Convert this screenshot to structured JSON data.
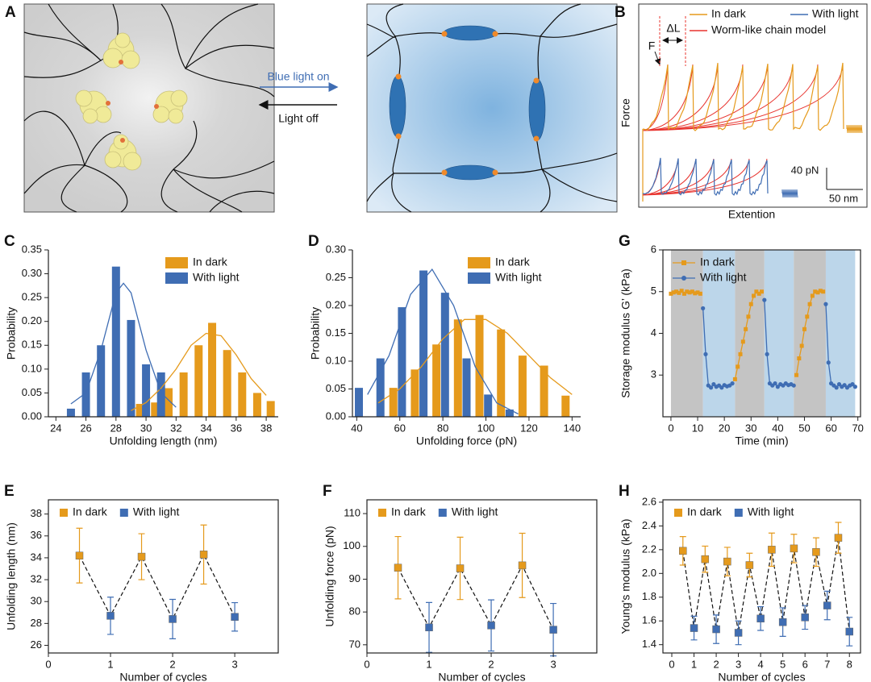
{
  "illustration": {
    "panel": "A",
    "light_on": "Blue light on",
    "light_off": "Light off"
  },
  "force_extension": {
    "panel": "B",
    "legend": [
      "In dark",
      "With light",
      "Worm-like chain model"
    ],
    "colors": [
      "#e59a1c",
      "#3f6db3",
      "#e8342f"
    ],
    "force_label": "F",
    "delta_label": "ΔL",
    "ylabel": "Force",
    "xlabel": "Extention",
    "force_scale": "40 pN",
    "length_scale": "50 nm"
  },
  "chart_data": [
    {
      "panel": "C",
      "type": "bar",
      "xlabel": "Unfolding length (nm)",
      "ylabel": "Probability",
      "frame": false,
      "legend": "top-right",
      "legend_orientation": "vertical",
      "xlim": [
        23.5,
        38.8
      ],
      "ylim": [
        0,
        0.35
      ],
      "xticks": [
        24,
        26,
        28,
        30,
        32,
        34,
        36,
        38
      ],
      "yticks": [
        {
          "value": 0,
          "label": "0.00"
        },
        0.05,
        {
          "value": 0.1,
          "label": "0.10"
        },
        0.15,
        {
          "value": 0.2,
          "label": "0.20"
        },
        0.25,
        {
          "value": 0.3,
          "label": "0.30"
        },
        0.35
      ],
      "series": [
        {
          "name": "In dark",
          "color": "#e59a1c",
          "type": "bar",
          "x": [
            29.6,
            30.6,
            31.5,
            32.5,
            33.5,
            34.4,
            35.4,
            36.4,
            37.4,
            38.3
          ],
          "values": [
            0.027,
            0.03,
            0.06,
            0.093,
            0.15,
            0.197,
            0.14,
            0.093,
            0.05,
            0.033
          ]
        },
        {
          "name": "With light",
          "color": "#3f6db3",
          "type": "bar",
          "x": [
            25,
            26,
            27,
            28,
            29,
            30,
            31
          ],
          "values": [
            0.017,
            0.093,
            0.15,
            0.315,
            0.203,
            0.11,
            0.093
          ]
        },
        {
          "color": "#e59a1c",
          "type": "line",
          "x": [
            29,
            30,
            31,
            32,
            33,
            34,
            35,
            36,
            37,
            38
          ],
          "values": [
            0.013,
            0.03,
            0.06,
            0.1,
            0.15,
            0.175,
            0.17,
            0.13,
            0.08,
            0.045
          ]
        },
        {
          "color": "#3f6db3",
          "type": "line",
          "x": [
            25,
            26,
            27,
            28,
            28.5,
            29,
            30,
            31,
            32
          ],
          "values": [
            0.027,
            0.05,
            0.14,
            0.26,
            0.28,
            0.26,
            0.14,
            0.05,
            0.02
          ]
        }
      ]
    },
    {
      "panel": "D",
      "type": "bar",
      "xlabel": "Unfolding force (pN)",
      "ylabel": "Probability",
      "frame": false,
      "legend": "top-right",
      "legend_orientation": "vertical",
      "xlim": [
        38,
        144
      ],
      "ylim": [
        0,
        0.3
      ],
      "xticks": [
        40,
        60,
        80,
        100,
        120,
        140
      ],
      "yticks": [
        {
          "value": 0,
          "label": "0.00"
        },
        0.05,
        {
          "value": 0.1,
          "label": "0.10"
        },
        0.15,
        {
          "value": 0.2,
          "label": "0.20"
        },
        0.25,
        {
          "value": 0.3,
          "label": "0.30"
        }
      ],
      "series": [
        {
          "name": "In dark",
          "color": "#e59a1c",
          "type": "bar",
          "x": [
            57,
            67,
            77,
            87,
            97,
            107,
            117,
            127,
            137
          ],
          "values": [
            0.052,
            0.085,
            0.13,
            0.175,
            0.183,
            0.157,
            0.11,
            0.092,
            0.038
          ]
        },
        {
          "name": "With light",
          "color": "#3f6db3",
          "type": "bar",
          "x": [
            41,
            51,
            61,
            71,
            81,
            91,
            101,
            111
          ],
          "values": [
            0.052,
            0.105,
            0.197,
            0.263,
            0.223,
            0.105,
            0.04,
            0.013
          ]
        },
        {
          "color": "#e59a1c",
          "type": "line",
          "x": [
            50,
            60,
            70,
            80,
            90,
            100,
            110,
            120,
            130,
            140
          ],
          "values": [
            0.025,
            0.05,
            0.09,
            0.14,
            0.175,
            0.175,
            0.15,
            0.11,
            0.07,
            0.04
          ]
        },
        {
          "color": "#3f6db3",
          "type": "line",
          "x": [
            45,
            55,
            65,
            75,
            85,
            95,
            105,
            115
          ],
          "values": [
            0.04,
            0.11,
            0.22,
            0.265,
            0.2,
            0.09,
            0.025,
            0.005
          ]
        }
      ]
    },
    {
      "panel": "G",
      "type": "line",
      "xlabel": "Time (min)",
      "ylabel": "Storage modulus G’ (kPa)",
      "frame": true,
      "legend": "top-left",
      "legend_orientation": "vertical",
      "xlim": [
        -3,
        71
      ],
      "ylim": [
        2,
        6
      ],
      "xticks": [
        0,
        10,
        20,
        30,
        40,
        50,
        60,
        70
      ],
      "yticks": [
        3,
        4,
        5,
        6
      ],
      "regions": [
        {
          "start": 0,
          "end": 12,
          "color": "#c4c4c4"
        },
        {
          "start": 12,
          "end": 24,
          "color": "#bcd6ea"
        },
        {
          "start": 24,
          "end": 35,
          "color": "#c4c4c4"
        },
        {
          "start": 35,
          "end": 46,
          "color": "#bcd6ea"
        },
        {
          "start": 46,
          "end": 58,
          "color": "#c4c4c4"
        },
        {
          "start": 58,
          "end": 69,
          "color": "#bcd6ea"
        }
      ],
      "series": [
        {
          "name": "In dark",
          "color": "#e59a1c",
          "type": "line",
          "marker": "square",
          "x": [
            0,
            1,
            2,
            3,
            4,
            5,
            6,
            7,
            8,
            9,
            10,
            11,
            12,
            24,
            25,
            26,
            27,
            28,
            29,
            30,
            31,
            32,
            33,
            34,
            35,
            47,
            48,
            49,
            50,
            51,
            52,
            53,
            54,
            55,
            56,
            57
          ],
          "values": [
            4.95,
            4.98,
            5.0,
            4.97,
            5.02,
            4.95,
            5.0,
            4.98,
            5.0,
            4.96,
            4.98,
            4.95,
            null,
            2.9,
            3.2,
            3.5,
            3.8,
            4.1,
            4.4,
            4.7,
            4.9,
            5.0,
            4.95,
            5.0,
            null,
            3.0,
            3.4,
            3.7,
            4.1,
            4.4,
            4.7,
            4.9,
            5.0,
            4.98,
            5.02,
            5.0
          ]
        },
        {
          "name": "With light",
          "color": "#3f6db3",
          "type": "line",
          "marker": "circle",
          "x": [
            12,
            13,
            14,
            15,
            16,
            17,
            18,
            19,
            20,
            21,
            22,
            23,
            24,
            35,
            36,
            37,
            38,
            39,
            40,
            41,
            42,
            43,
            44,
            45,
            46,
            47,
            58,
            59,
            60,
            61,
            62,
            63,
            64,
            65,
            66,
            67,
            68,
            69
          ],
          "values": [
            4.6,
            3.5,
            2.75,
            2.7,
            2.78,
            2.72,
            2.75,
            2.7,
            2.76,
            2.73,
            2.75,
            2.8,
            null,
            4.8,
            3.5,
            2.8,
            2.75,
            2.8,
            2.72,
            2.78,
            2.75,
            2.8,
            2.76,
            2.78,
            2.75,
            null,
            4.7,
            3.3,
            2.8,
            2.75,
            2.7,
            2.78,
            2.72,
            2.76,
            2.7,
            2.75,
            2.78,
            2.72
          ]
        }
      ]
    },
    {
      "panel": "E",
      "type": "scatter",
      "xlabel": "Number of cycles",
      "ylabel": "Unfolding length (nm)",
      "frame": true,
      "legend": "top-left",
      "legend_orientation": "horizontal",
      "xlim": [
        0,
        3.7
      ],
      "ylim": [
        25.3,
        39.3
      ],
      "xticks": [
        0,
        1,
        2,
        3
      ],
      "yticks": [
        26,
        28,
        30,
        32,
        34,
        36,
        38
      ],
      "series": [
        {
          "name": "In dark",
          "color": "#e59a1c",
          "type": "scatter",
          "x": [
            0.5,
            1.5,
            2.5
          ],
          "values": [
            34.2,
            34.1,
            34.3
          ],
          "errors": [
            2.5,
            2.1,
            2.7
          ]
        },
        {
          "name": "With light",
          "color": "#3f6db3",
          "type": "scatter",
          "x": [
            1,
            2,
            3
          ],
          "values": [
            28.7,
            28.4,
            28.6
          ],
          "errors": [
            1.7,
            1.8,
            1.3
          ]
        }
      ]
    },
    {
      "panel": "F",
      "type": "scatter",
      "xlabel": "Number of cycles",
      "ylabel": "Unfolding force (pN)",
      "frame": true,
      "legend": "top-left",
      "legend_orientation": "horizontal",
      "xlim": [
        0,
        3.7
      ],
      "ylim": [
        67.5,
        114.2
      ],
      "xticks": [
        0,
        1,
        2,
        3
      ],
      "yticks": [
        70,
        80,
        90,
        100,
        110
      ],
      "series": [
        {
          "name": "In dark",
          "color": "#e59a1c",
          "type": "scatter",
          "x": [
            0.5,
            1.5,
            2.5
          ],
          "values": [
            93.5,
            93.3,
            94.2
          ],
          "errors": [
            9.5,
            9.5,
            9.8
          ]
        },
        {
          "name": "With light",
          "color": "#3f6db3",
          "type": "scatter",
          "x": [
            1,
            2,
            3
          ],
          "values": [
            75.3,
            75.9,
            74.6
          ],
          "errors": [
            7.6,
            7.8,
            8
          ]
        }
      ]
    },
    {
      "panel": "H",
      "type": "scatter",
      "xlabel": "Number of cycles",
      "ylabel": "Young's modulus (kPa)",
      "frame": true,
      "legend": "top-left",
      "legend_orientation": "horizontal",
      "xlim": [
        -0.4,
        8.5
      ],
      "ylim": [
        1.33,
        2.62
      ],
      "xticks": [
        0,
        1,
        2,
        3,
        4,
        5,
        6,
        7,
        8
      ],
      "yticks": [
        1.4,
        1.6,
        1.8,
        {
          "value": 2,
          "label": "2.0"
        },
        2.2,
        2.4,
        2.6
      ],
      "series": [
        {
          "name": "In dark",
          "color": "#e59a1c",
          "type": "scatter",
          "x": [
            0.5,
            1.5,
            2.5,
            3.5,
            4.5,
            5.5,
            6.5,
            7.5
          ],
          "values": [
            2.19,
            2.12,
            2.1,
            2.07,
            2.2,
            2.21,
            2.18,
            2.3
          ],
          "errors": [
            0.12,
            0.11,
            0.12,
            0.1,
            0.14,
            0.12,
            0.12,
            0.13
          ]
        },
        {
          "name": "With light",
          "color": "#3f6db3",
          "type": "scatter",
          "x": [
            1,
            2,
            3,
            4,
            5,
            6,
            7,
            8
          ],
          "values": [
            1.54,
            1.53,
            1.5,
            1.62,
            1.59,
            1.63,
            1.73,
            1.51
          ],
          "errors": [
            0.1,
            0.12,
            0.1,
            0.1,
            0.12,
            0.1,
            0.12,
            0.12
          ]
        }
      ]
    }
  ]
}
